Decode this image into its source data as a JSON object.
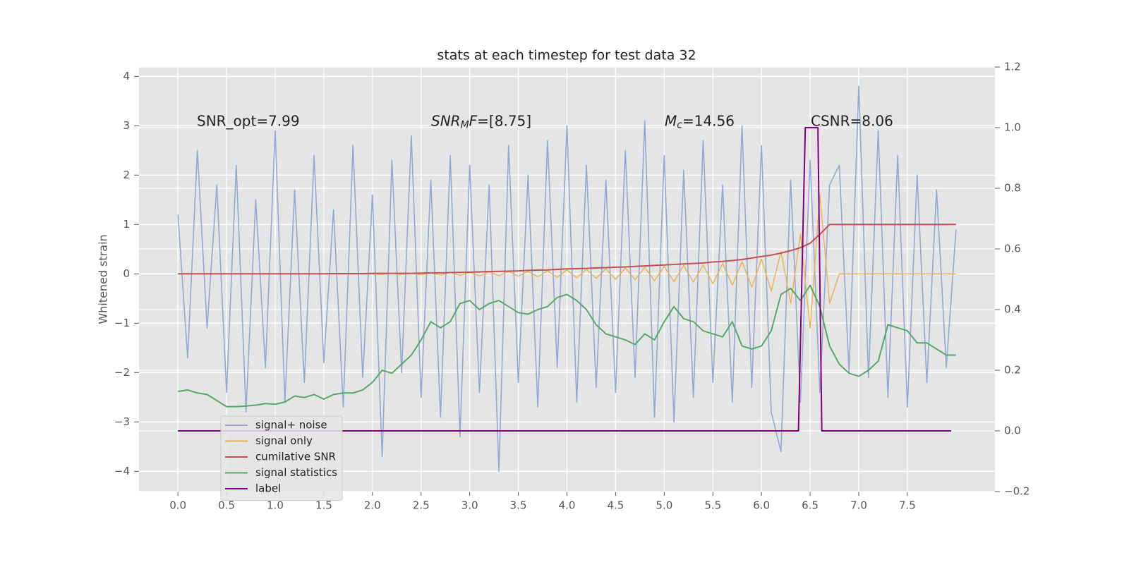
{
  "chart_data": {
    "type": "line",
    "title": "stats at each timestep for test data 32",
    "y_label": "Whitened strain",
    "grid": true,
    "legend": "lower left",
    "background": "#e5e5e5",
    "xlim": [
      -0.4,
      8.4
    ],
    "ylim": [
      -4.41,
      4.19
    ],
    "y2lim": [
      -0.2,
      1.2
    ],
    "xticks": [
      {
        "value": 0,
        "label": "0.0"
      },
      {
        "value": 0.5,
        "label": "0.5"
      },
      {
        "value": 1,
        "label": "1.0"
      },
      {
        "value": 1.5,
        "label": "1.5"
      },
      {
        "value": 2,
        "label": "2.0"
      },
      {
        "value": 2.5,
        "label": "2.5"
      },
      {
        "value": 3,
        "label": "3.0"
      },
      {
        "value": 3.5,
        "label": "3.5"
      },
      {
        "value": 4,
        "label": "4.0"
      },
      {
        "value": 4.5,
        "label": "4.5"
      },
      {
        "value": 5,
        "label": "5.0"
      },
      {
        "value": 5.5,
        "label": "5.5"
      },
      {
        "value": 6,
        "label": "6.0"
      },
      {
        "value": 6.5,
        "label": "6.5"
      },
      {
        "value": 7,
        "label": "7.0"
      },
      {
        "value": 7.5,
        "label": "7.5"
      }
    ],
    "yticks": [
      {
        "value": -4,
        "label": "−4"
      },
      {
        "value": -3,
        "label": "−3"
      },
      {
        "value": -2,
        "label": "−2"
      },
      {
        "value": -1,
        "label": "−1"
      },
      0,
      1,
      2,
      3,
      4
    ],
    "y2ticks": [
      {
        "value": -0.2,
        "label": "−0.2"
      },
      {
        "value": 0,
        "label": "0.0"
      },
      {
        "value": 0.2,
        "label": "0.2"
      },
      {
        "value": 0.4,
        "label": "0.4"
      },
      {
        "value": 0.6,
        "label": "0.6"
      },
      {
        "value": 0.8,
        "label": "0.8"
      },
      {
        "value": 1,
        "label": "1.0"
      },
      {
        "value": 1.2,
        "label": "1.2"
      }
    ],
    "annotations": [
      {
        "parts": [
          {
            "text": "SNR_opt=7.99"
          }
        ]
      },
      {
        "parts": [
          {
            "text": "SNR",
            "italic": true
          },
          {
            "text": "M",
            "italic": true,
            "sub": true
          },
          {
            "text": "F",
            "italic": true
          },
          {
            "text": "=[8.75]"
          }
        ]
      },
      {
        "parts": [
          {
            "text": "M",
            "italic": true
          },
          {
            "text": "c",
            "italic": true,
            "sub": true
          },
          {
            "text": "=14.56"
          }
        ]
      },
      {
        "parts": [
          {
            "text": "CSNR=8.06"
          }
        ]
      }
    ],
    "x": [
      0,
      0.1,
      0.2,
      0.3,
      0.4,
      0.5,
      0.6,
      0.7,
      0.8,
      0.9,
      1,
      1.1,
      1.2,
      1.3,
      1.4,
      1.5,
      1.6,
      1.7,
      1.8,
      1.9,
      2,
      2.1,
      2.2,
      2.3,
      2.4,
      2.5,
      2.6,
      2.7,
      2.8,
      2.9,
      3,
      3.1,
      3.2,
      3.3,
      3.4,
      3.5,
      3.6,
      3.7,
      3.8,
      3.9,
      4,
      4.1,
      4.2,
      4.3,
      4.4,
      4.5,
      4.6,
      4.7,
      4.8,
      4.9,
      5,
      5.1,
      5.2,
      5.3,
      5.4,
      5.5,
      5.6,
      5.7,
      5.8,
      5.9,
      6,
      6.1,
      6.2,
      6.3,
      6.4,
      6.5,
      6.6,
      6.7,
      6.8,
      6.9,
      7,
      7.1,
      7.2,
      7.3,
      7.4,
      7.5,
      7.6,
      7.7,
      7.8,
      7.9,
      8
    ],
    "series": [
      {
        "name": "signal+ noise",
        "color": "#93a9d0",
        "values": [
          1.2,
          -1.7,
          2.5,
          -1.1,
          1.8,
          -2.4,
          2.2,
          -2.8,
          1.5,
          -1.9,
          2.9,
          -2.6,
          1.7,
          -2.2,
          2.4,
          -1.8,
          1.3,
          -2.7,
          2.6,
          -2.1,
          1.6,
          -3.7,
          2.3,
          -2.0,
          2.8,
          -2.5,
          1.9,
          -2.9,
          2.4,
          -3.3,
          2.2,
          -2.4,
          1.8,
          -4.0,
          2.6,
          -2.2,
          2.0,
          -2.7,
          2.7,
          -1.9,
          3.0,
          -2.6,
          2.2,
          -2.3,
          1.9,
          -2.4,
          2.5,
          -2.1,
          3.1,
          -2.9,
          2.4,
          -3.0,
          2.1,
          -2.5,
          2.7,
          -2.2,
          1.8,
          -2.6,
          3.0,
          -2.3,
          2.6,
          -2.8,
          -3.6,
          1.9,
          -2.6,
          2.3,
          -2.4,
          1.8,
          2.2,
          -2.0,
          3.8,
          -2.1,
          2.9,
          -2.5,
          2.4,
          -2.7,
          2.0,
          -2.2,
          1.7,
          -1.9,
          0.9
        ]
      },
      {
        "name": "signal only",
        "color": "#e8b24e",
        "values": [
          0,
          0,
          0,
          0,
          0,
          0,
          0,
          0,
          0,
          0,
          0,
          0,
          0,
          0,
          0,
          0,
          0,
          0,
          0,
          0,
          0,
          -0.01,
          0.01,
          -0.01,
          0.01,
          -0.02,
          0.02,
          -0.02,
          0.03,
          -0.03,
          0.03,
          -0.04,
          0.04,
          -0.04,
          0.05,
          -0.05,
          0.05,
          -0.06,
          0.06,
          -0.07,
          0.08,
          -0.08,
          0.09,
          -0.09,
          0.1,
          -0.11,
          0.12,
          -0.12,
          0.13,
          -0.14,
          0.15,
          -0.16,
          0.17,
          -0.17,
          0.18,
          -0.2,
          0.21,
          -0.23,
          0.25,
          -0.27,
          0.3,
          -0.35,
          0.45,
          -0.6,
          0.8,
          -1.1,
          1.6,
          -0.6,
          0,
          0,
          0,
          0,
          0,
          0,
          0,
          0,
          0,
          0,
          0,
          0,
          0
        ]
      },
      {
        "name": "cumilative SNR",
        "color": "#c44e52",
        "values": [
          0,
          0,
          0,
          0,
          0,
          0,
          0,
          0,
          0,
          0,
          0,
          0,
          0,
          0,
          0,
          0,
          0.005,
          0.005,
          0.005,
          0.005,
          0.01,
          0.01,
          0.01,
          0.01,
          0.01,
          0.015,
          0.02,
          0.02,
          0.025,
          0.03,
          0.035,
          0.04,
          0.045,
          0.05,
          0.055,
          0.06,
          0.07,
          0.075,
          0.08,
          0.09,
          0.1,
          0.105,
          0.11,
          0.12,
          0.125,
          0.135,
          0.14,
          0.15,
          0.16,
          0.17,
          0.18,
          0.19,
          0.2,
          0.21,
          0.22,
          0.24,
          0.25,
          0.27,
          0.29,
          0.32,
          0.35,
          0.38,
          0.42,
          0.47,
          0.53,
          0.62,
          0.8,
          1,
          1,
          1,
          1,
          1,
          1,
          1,
          1,
          1,
          1,
          1,
          1,
          1,
          1
        ]
      },
      {
        "name": "signal statistics",
        "color": "#55a868",
        "axis": "y2",
        "values": [
          0.13,
          0.135,
          0.125,
          0.12,
          0.1,
          0.08,
          0.08,
          0.082,
          0.085,
          0.09,
          0.088,
          0.095,
          0.115,
          0.11,
          0.12,
          0.105,
          0.12,
          0.125,
          0.125,
          0.135,
          0.16,
          0.2,
          0.19,
          0.22,
          0.25,
          0.3,
          0.36,
          0.34,
          0.36,
          0.42,
          0.43,
          0.4,
          0.42,
          0.43,
          0.41,
          0.39,
          0.385,
          0.4,
          0.41,
          0.44,
          0.45,
          0.43,
          0.4,
          0.35,
          0.32,
          0.31,
          0.3,
          0.285,
          0.32,
          0.3,
          0.36,
          0.41,
          0.37,
          0.36,
          0.33,
          0.32,
          0.31,
          0.36,
          0.28,
          0.27,
          0.28,
          0.33,
          0.45,
          0.47,
          0.43,
          0.48,
          0.41,
          0.28,
          0.22,
          0.19,
          0.18,
          0.2,
          0.23,
          0.35,
          0.34,
          0.33,
          0.29,
          0.29,
          0.27,
          0.25,
          0.25
        ]
      },
      {
        "name": "label",
        "color": "#800080",
        "axis": "y2",
        "x": [
          0,
          6.38,
          6.45,
          6.58,
          6.62,
          7.95
        ],
        "values": [
          0,
          0,
          1,
          1,
          0,
          0
        ]
      }
    ]
  }
}
